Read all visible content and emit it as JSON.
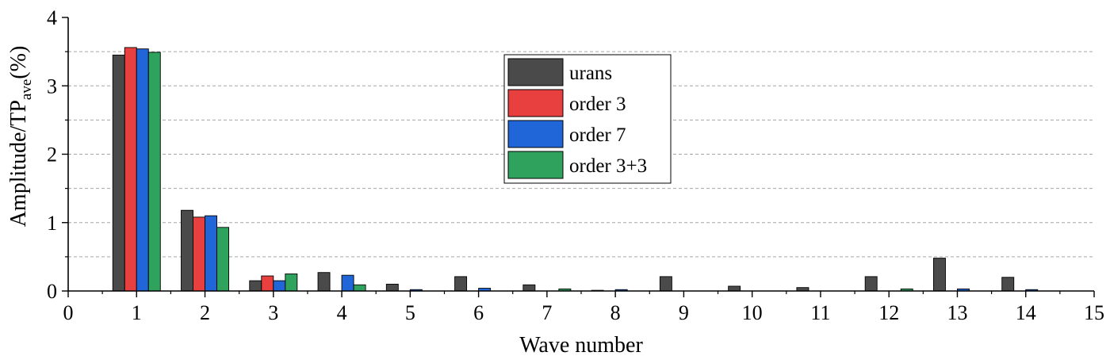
{
  "chart_data": {
    "type": "bar",
    "xlabel": "Wave number",
    "ylabel": {
      "main": "Amplitude/TP",
      "subscript": "ave",
      "suffix": "(%)"
    },
    "xlim": [
      0,
      15
    ],
    "ylim": [
      0,
      4
    ],
    "x_ticks": [
      0,
      1,
      2,
      3,
      4,
      5,
      6,
      7,
      8,
      9,
      10,
      11,
      12,
      13,
      14,
      15
    ],
    "y_ticks": [
      0,
      1,
      2,
      3,
      4
    ],
    "grid": {
      "horizontal": true,
      "style": "dashed",
      "step": 0.5
    },
    "legend_position": "top-center",
    "categories": [
      1,
      2,
      3,
      4,
      5,
      6,
      7,
      8,
      9,
      10,
      11,
      12,
      13,
      14
    ],
    "series": [
      {
        "name": "urans",
        "color": "#4a4a4a",
        "values": [
          3.45,
          1.18,
          0.15,
          0.27,
          0.1,
          0.21,
          0.09,
          0.01,
          0.21,
          0.07,
          0.05,
          0.21,
          0.48,
          0.2
        ]
      },
      {
        "name": "order 3",
        "color": "#e8403f",
        "values": [
          3.56,
          1.08,
          0.22,
          0.0,
          0.0,
          0.0,
          0.0,
          0.0,
          0.0,
          0.0,
          0.0,
          0.0,
          0.0,
          0.0
        ]
      },
      {
        "name": "order 7",
        "color": "#2166d9",
        "values": [
          3.54,
          1.1,
          0.15,
          0.23,
          0.02,
          0.04,
          0.0,
          0.02,
          0.0,
          0.0,
          0.0,
          0.0,
          0.03,
          0.02
        ]
      },
      {
        "name": "order 3+3",
        "color": "#2fa35e",
        "values": [
          3.49,
          0.93,
          0.25,
          0.09,
          0.0,
          0.0,
          0.03,
          0.0,
          0.0,
          0.0,
          0.0,
          0.03,
          0.0,
          0.0
        ]
      }
    ]
  }
}
